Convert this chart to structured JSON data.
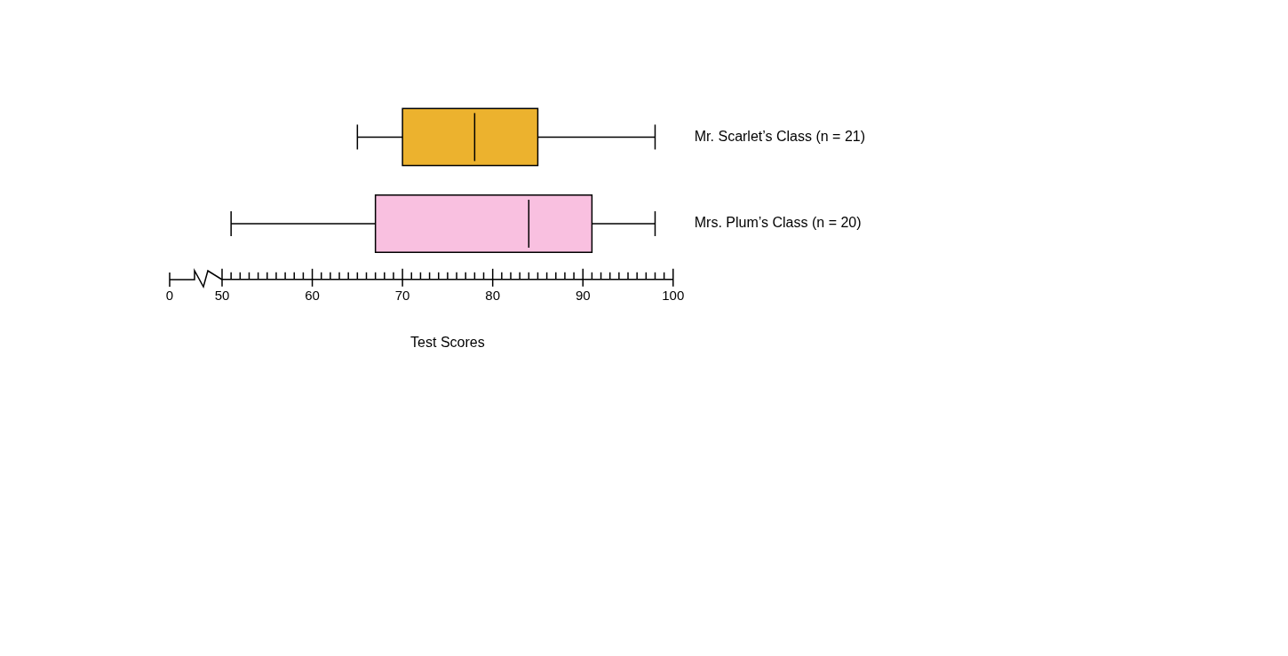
{
  "chart_data": {
    "type": "box",
    "xlabel": "Test Scores",
    "categories": [
      "Mr. Scarlet’s Class (n = 21)",
      "Mrs. Plum’s Class (n = 20)"
    ],
    "boxes": [
      {
        "low": 65,
        "q1": 70,
        "median": 78,
        "q3": 85,
        "high": 98
      },
      {
        "low": 51,
        "q1": 67,
        "median": 84,
        "q3": 91,
        "high": 98
      }
    ],
    "colors": [
      "#ecb22e",
      "#f9c0e0"
    ],
    "orientation": "horizontal",
    "xlim": [
      50,
      100
    ],
    "xticks": [
      50,
      {
        "value": 51,
        "label": null
      },
      {
        "value": 52,
        "label": null
      },
      {
        "value": 53,
        "label": null
      },
      {
        "value": 54,
        "label": null
      },
      {
        "value": 55,
        "label": null
      },
      {
        "value": 56,
        "label": null
      },
      {
        "value": 57,
        "label": null
      },
      {
        "value": 58,
        "label": null
      },
      {
        "value": 59,
        "label": null
      },
      60,
      {
        "value": 61,
        "label": null
      },
      {
        "value": 62,
        "label": null
      },
      {
        "value": 63,
        "label": null
      },
      {
        "value": 64,
        "label": null
      },
      {
        "value": 65,
        "label": null
      },
      {
        "value": 66,
        "label": null
      },
      {
        "value": 67,
        "label": null
      },
      {
        "value": 68,
        "label": null
      },
      {
        "value": 69,
        "label": null
      },
      70,
      {
        "value": 71,
        "label": null
      },
      {
        "value": 72,
        "label": null
      },
      {
        "value": 73,
        "label": null
      },
      {
        "value": 74,
        "label": null
      },
      {
        "value": 75,
        "label": null
      },
      {
        "value": 76,
        "label": null
      },
      {
        "value": 77,
        "label": null
      },
      {
        "value": 78,
        "label": null
      },
      {
        "value": 79,
        "label": null
      },
      80,
      {
        "value": 81,
        "label": null
      },
      {
        "value": 82,
        "label": null
      },
      {
        "value": 83,
        "label": null
      },
      {
        "value": 84,
        "label": null
      },
      {
        "value": 85,
        "label": null
      },
      {
        "value": 86,
        "label": null
      },
      {
        "value": 87,
        "label": null
      },
      {
        "value": 88,
        "label": null
      },
      {
        "value": 89,
        "label": null
      },
      90,
      {
        "value": 91,
        "label": null
      },
      {
        "value": 92,
        "label": null
      },
      {
        "value": 93,
        "label": null
      },
      {
        "value": 94,
        "label": null
      },
      {
        "value": 95,
        "label": null
      },
      {
        "value": 96,
        "label": null
      },
      {
        "value": 97,
        "label": null
      },
      {
        "value": 98,
        "label": null
      },
      {
        "value": 99,
        "label": null
      },
      100
    ],
    "annotations": [
      "0"
    ]
  }
}
